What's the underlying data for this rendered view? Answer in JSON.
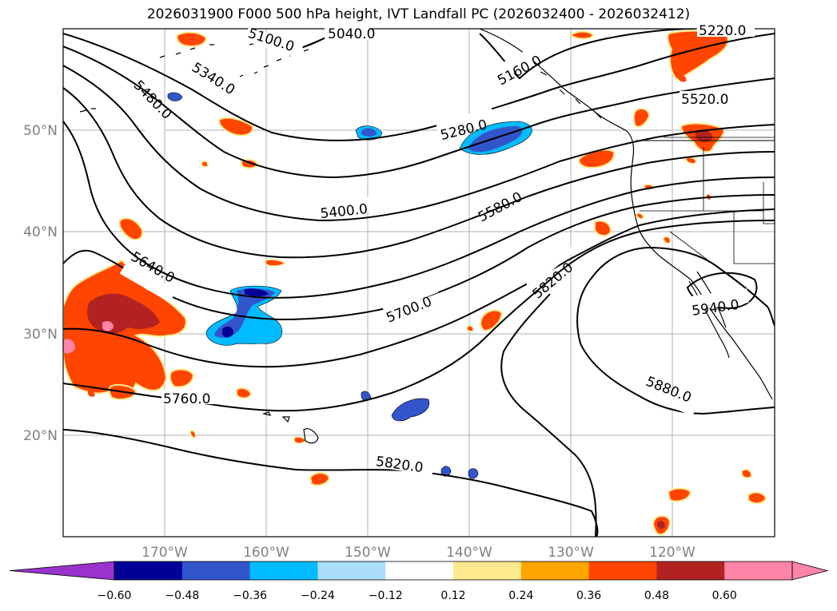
{
  "title": "2026031900 F000 500 hPa height, IVT Landfall PC (2026032400 - 2026032412)",
  "map": {
    "lon_labels": [
      "170°W",
      "160°W",
      "150°W",
      "140°W",
      "130°W",
      "120°W"
    ],
    "lat_labels": [
      "50°N",
      "40°N",
      "30°N",
      "20°N"
    ],
    "contour_labels": [
      "5040.0",
      "5100.0",
      "5160.0",
      "5220.0",
      "5280.0",
      "5340.0",
      "5400.0",
      "5480.0",
      "5520.0",
      "5580.0",
      "5640.0",
      "5700.0",
      "5760.0",
      "5820.0",
      "5820.0",
      "5880.0",
      "5940.0"
    ]
  },
  "colorbar": {
    "ticks": [
      "−0.60",
      "−0.48",
      "−0.36",
      "−0.24",
      "−0.12",
      "0.12",
      "0.24",
      "0.36",
      "0.48",
      "0.60"
    ],
    "colors": [
      "#9933cc",
      "#000099",
      "#3355cc",
      "#00bbff",
      "#aaddf8",
      "#ffffff",
      "#ffe98f",
      "#ffa500",
      "#ff4500",
      "#b22222",
      "#ff85a8",
      "#ff85a8"
    ]
  },
  "palette": {
    "neg_dark": "#000099",
    "neg_mid": "#3355cc",
    "neg_light": "#00bbff",
    "pos_orange": "#ff4500",
    "pos_red": "#b22222",
    "pos_pink": "#ff85a8",
    "pos_yellow": "#ffe98f"
  }
}
